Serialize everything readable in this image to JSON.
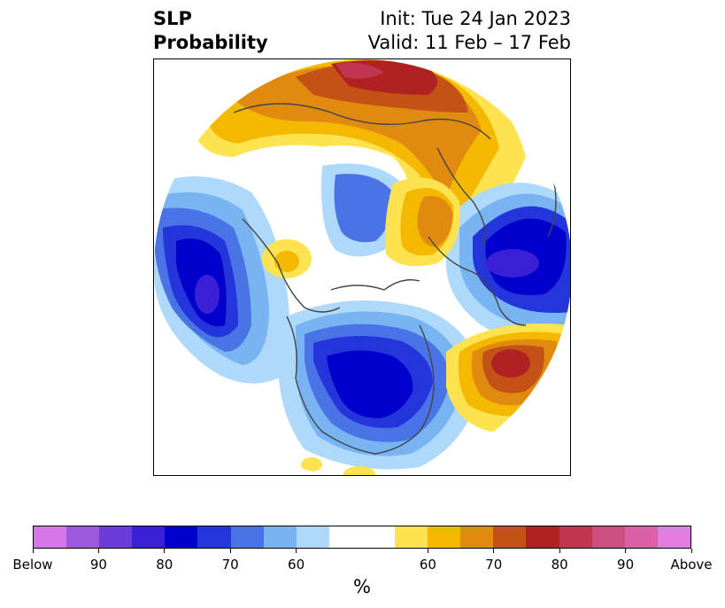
{
  "title": {
    "left_line1": "SLP",
    "left_line2": "Probability",
    "right_line1": "Init: Tue 24 Jan 2023",
    "right_line2": "Valid: 11 Feb – 17 Feb"
  },
  "colorbar": {
    "units": "%",
    "below_colors": [
      "#d576e8",
      "#9d58e0",
      "#6a3ddb",
      "#3a1fd6",
      "#0000cc",
      "#2335db",
      "#4a73e6",
      "#78b3f2",
      "#aed9fa"
    ],
    "neutral_color": "#ffffff",
    "above_colors": [
      "#fde34f",
      "#f4b800",
      "#e08a0f",
      "#c45115",
      "#b02121",
      "#c03650",
      "#cc4f80",
      "#dd5fa8",
      "#e47be0"
    ],
    "tick_labels": [
      "Below",
      "90",
      "80",
      "70",
      "60",
      "60",
      "70",
      "80",
      "90",
      "Above"
    ]
  }
}
